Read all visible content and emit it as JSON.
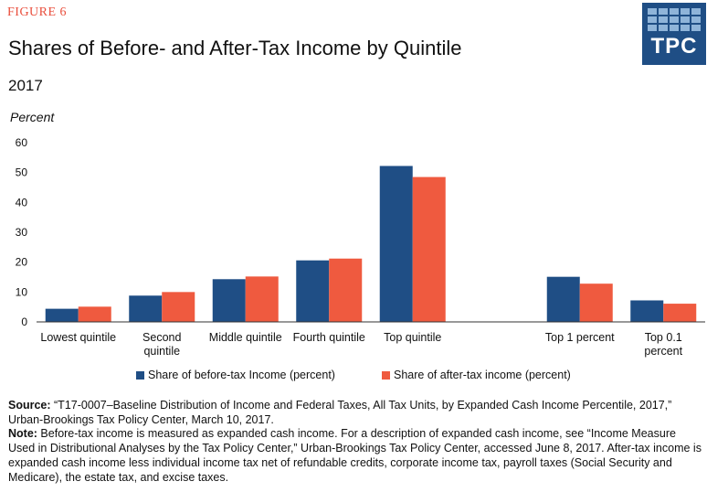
{
  "figure_label": "FIGURE 6",
  "logo": {
    "text": "TPC"
  },
  "chart_data": {
    "type": "bar",
    "title": "Shares of Before- and After-Tax Income by Quintile",
    "subtitle": "2017",
    "ylabel": "Percent",
    "xlabel": "",
    "ylim": [
      0,
      60
    ],
    "yticks": [
      0,
      10,
      20,
      30,
      40,
      50,
      60
    ],
    "categories": [
      [
        "Lowest quintile"
      ],
      [
        "Second",
        "quintile"
      ],
      [
        "Middle quintile"
      ],
      [
        "Fourth quintile"
      ],
      [
        "Top quintile"
      ],
      [],
      [
        "Top 1 percent"
      ],
      [
        "Top 0.1",
        "percent"
      ]
    ],
    "series": [
      {
        "name": "Share of before-tax Income (percent)",
        "color": "#1f4e85",
        "values": [
          4.4,
          8.8,
          14.3,
          20.6,
          52.2,
          null,
          15.1,
          7.2
        ]
      },
      {
        "name": "Share of after-tax income (percent)",
        "color": "#ef5a3f",
        "values": [
          5.1,
          10.0,
          15.2,
          21.2,
          48.5,
          null,
          12.8,
          6.1
        ]
      }
    ],
    "legend_position": "bottom-center"
  },
  "notes": {
    "source_label": "Source:",
    "source_text": " “T17-0007–Baseline Distribution of Income and Federal Taxes, All Tax Units, by Expanded Cash Income Percentile, 2017,” Urban-Brookings Tax Policy Center, March 10, 2017.",
    "note_label": "Note:",
    "note_text": " Before-tax income is measured as expanded cash income. For a description of expanded cash income, see “Income Measure Used in Distributional Analyses by the Tax Policy Center,” Urban-Brookings Tax Policy Center, accessed June 8, 2017. After-tax income is expanded cash income less individual income tax net of refundable credits, corporate income tax, payroll taxes (Social Security and Medicare), the estate tax, and excise taxes."
  }
}
